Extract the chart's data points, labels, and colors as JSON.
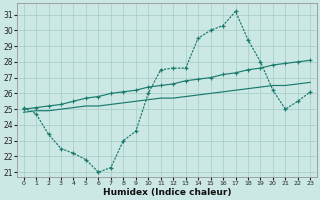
{
  "xlabel": "Humidex (Indice chaleur)",
  "bg_color": "#cce8e4",
  "grid_color": "#aad0cc",
  "line_color": "#1a7a6e",
  "xlim": [
    -0.5,
    23.5
  ],
  "ylim": [
    20.7,
    31.7
  ],
  "yticks": [
    21,
    22,
    23,
    24,
    25,
    26,
    27,
    28,
    29,
    30,
    31
  ],
  "xticks": [
    0,
    1,
    2,
    3,
    4,
    5,
    6,
    7,
    8,
    9,
    10,
    11,
    12,
    13,
    14,
    15,
    16,
    17,
    18,
    19,
    20,
    21,
    22,
    23
  ],
  "line_straight_top_x": [
    0,
    1,
    2,
    3,
    4,
    5,
    6,
    7,
    8,
    9,
    10,
    11,
    12,
    13,
    14,
    15,
    16,
    17,
    18,
    19,
    20,
    21,
    22,
    23
  ],
  "line_straight_top_y": [
    25.0,
    25.1,
    25.2,
    25.3,
    25.5,
    25.7,
    25.8,
    26.0,
    26.1,
    26.2,
    26.4,
    26.5,
    26.6,
    26.8,
    26.9,
    27.0,
    27.2,
    27.3,
    27.5,
    27.6,
    27.8,
    27.9,
    28.0,
    28.1
  ],
  "line_straight_bot_x": [
    0,
    1,
    2,
    3,
    4,
    5,
    6,
    7,
    8,
    9,
    10,
    11,
    12,
    13,
    14,
    15,
    16,
    17,
    18,
    19,
    20,
    21,
    22,
    23
  ],
  "line_straight_bot_y": [
    24.8,
    24.9,
    24.9,
    25.0,
    25.1,
    25.2,
    25.2,
    25.3,
    25.4,
    25.5,
    25.6,
    25.7,
    25.7,
    25.8,
    25.9,
    26.0,
    26.1,
    26.2,
    26.3,
    26.4,
    26.5,
    26.5,
    26.6,
    26.7
  ],
  "line_curve_x": [
    0,
    1,
    2,
    3,
    4,
    5,
    6,
    7,
    8,
    9,
    10,
    11,
    12,
    13,
    14,
    15,
    16,
    17,
    18,
    19,
    20,
    21,
    22,
    23
  ],
  "line_curve_y": [
    25.1,
    24.7,
    23.4,
    22.5,
    22.2,
    21.8,
    21.0,
    21.3,
    23.0,
    23.6,
    26.0,
    27.5,
    27.6,
    27.6,
    29.5,
    30.0,
    30.3,
    31.2,
    29.4,
    28.0,
    26.2,
    25.0,
    25.5,
    26.1
  ]
}
